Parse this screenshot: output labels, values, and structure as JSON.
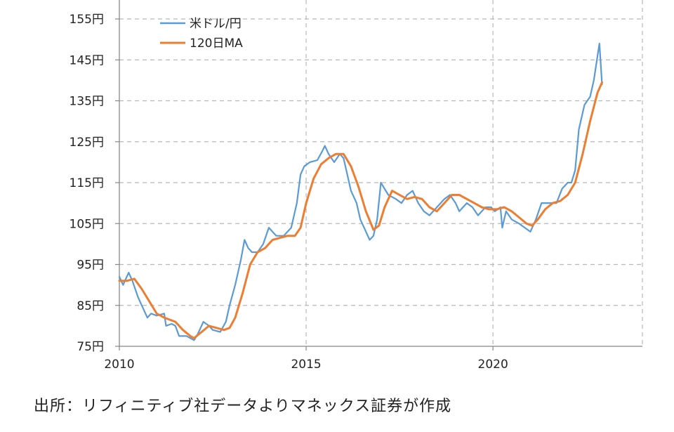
{
  "chart_data": {
    "type": "line",
    "xlim": [
      2010,
      2024
    ],
    "ylim": [
      75,
      155
    ],
    "x_ticks": [
      2010,
      2015,
      2020
    ],
    "x_tick_labels": [
      "2010",
      "2015",
      "2020"
    ],
    "y_ticks": [
      75,
      85,
      95,
      105,
      115,
      125,
      135,
      145,
      155
    ],
    "y_tick_labels": [
      "75円",
      "85円",
      "95円",
      "105円",
      "115円",
      "125円",
      "135円",
      "145円",
      "155円"
    ],
    "grid": true,
    "legend_position": "top-left",
    "series": [
      {
        "name": "米ドル/円",
        "color": "#5b9bd5",
        "x": [
          2010.0,
          2010.1,
          2010.25,
          2010.35,
          2010.5,
          2010.6,
          2010.75,
          2010.85,
          2011.0,
          2011.2,
          2011.25,
          2011.4,
          2011.5,
          2011.6,
          2011.8,
          2011.9,
          2012.0,
          2012.1,
          2012.25,
          2012.4,
          2012.5,
          2012.7,
          2012.85,
          2012.95,
          2013.1,
          2013.25,
          2013.35,
          2013.45,
          2013.55,
          2013.7,
          2013.85,
          2014.0,
          2014.2,
          2014.4,
          2014.6,
          2014.75,
          2014.85,
          2014.95,
          2015.1,
          2015.3,
          2015.45,
          2015.5,
          2015.6,
          2015.75,
          2015.9,
          2016.0,
          2016.1,
          2016.2,
          2016.35,
          2016.45,
          2016.55,
          2016.7,
          2016.8,
          2016.9,
          2017.0,
          2017.2,
          2017.4,
          2017.55,
          2017.7,
          2017.85,
          2018.0,
          2018.15,
          2018.3,
          2018.5,
          2018.7,
          2018.85,
          2019.0,
          2019.1,
          2019.3,
          2019.45,
          2019.6,
          2019.8,
          2019.95,
          2020.05,
          2020.2,
          2020.25,
          2020.35,
          2020.5,
          2020.7,
          2020.85,
          2021.0,
          2021.15,
          2021.3,
          2021.5,
          2021.7,
          2021.85,
          2022.0,
          2022.1,
          2022.2,
          2022.3,
          2022.45,
          2022.6,
          2022.7,
          2022.8,
          2022.85,
          2022.92
        ],
        "y": [
          92,
          90,
          93,
          91,
          87,
          85,
          82,
          83,
          82.5,
          83,
          80,
          80.5,
          80,
          77.5,
          77.5,
          77,
          76.5,
          78,
          81,
          80,
          79,
          78.5,
          81,
          85,
          90,
          96,
          101,
          99,
          98,
          98,
          100,
          104,
          102,
          102,
          104,
          110,
          117,
          119,
          120,
          120.5,
          123,
          124,
          122,
          120,
          122,
          121,
          117,
          113,
          110,
          106,
          104,
          101,
          102,
          106,
          115,
          112,
          111,
          110,
          112,
          113,
          110,
          108,
          107,
          109,
          111,
          112,
          110,
          108,
          110,
          109,
          107,
          109,
          109,
          108,
          109,
          104,
          108,
          106,
          105,
          104,
          103,
          106,
          110,
          110,
          110,
          113.5,
          115,
          115,
          118,
          128,
          134,
          136,
          140,
          146,
          149,
          139
        ]
      },
      {
        "name": "120日MA",
        "color": "#ed7d31",
        "x": [
          2010.0,
          2010.2,
          2010.4,
          2010.6,
          2010.8,
          2011.0,
          2011.2,
          2011.5,
          2011.7,
          2011.9,
          2012.0,
          2012.2,
          2012.4,
          2012.6,
          2012.8,
          2012.95,
          2013.1,
          2013.3,
          2013.5,
          2013.7,
          2013.9,
          2014.1,
          2014.3,
          2014.5,
          2014.7,
          2014.85,
          2015.0,
          2015.2,
          2015.4,
          2015.6,
          2015.8,
          2016.0,
          2016.2,
          2016.4,
          2016.6,
          2016.8,
          2016.95,
          2017.1,
          2017.3,
          2017.5,
          2017.7,
          2017.9,
          2018.1,
          2018.3,
          2018.5,
          2018.7,
          2018.9,
          2019.1,
          2019.3,
          2019.5,
          2019.7,
          2019.9,
          2020.1,
          2020.3,
          2020.5,
          2020.7,
          2020.9,
          2021.05,
          2021.2,
          2021.4,
          2021.6,
          2021.8,
          2022.0,
          2022.2,
          2022.4,
          2022.6,
          2022.8,
          2022.92
        ],
        "y": [
          91,
          91,
          91.5,
          89,
          86,
          83,
          82,
          81,
          79,
          77.5,
          77,
          78.5,
          80,
          79.5,
          79,
          79.5,
          82,
          88,
          95,
          98,
          99,
          101,
          101.5,
          102,
          102,
          104,
          110,
          116,
          119.5,
          121,
          122,
          122,
          119,
          114,
          108,
          103.5,
          104.5,
          109,
          113,
          112,
          111,
          111.5,
          111,
          109,
          108,
          110,
          112,
          112,
          111,
          110,
          109,
          108.5,
          108.5,
          109,
          108,
          106.5,
          105,
          104.5,
          106,
          108.5,
          110,
          110.5,
          112,
          115,
          122,
          130,
          137,
          139.5
        ]
      }
    ]
  },
  "legend": {
    "items": [
      {
        "label": "米ドル/円",
        "color": "#5b9bd5"
      },
      {
        "label": "120日MA",
        "color": "#ed7d31"
      }
    ]
  },
  "source": "出所：リフィニティブ社データよりマネックス証券が作成"
}
